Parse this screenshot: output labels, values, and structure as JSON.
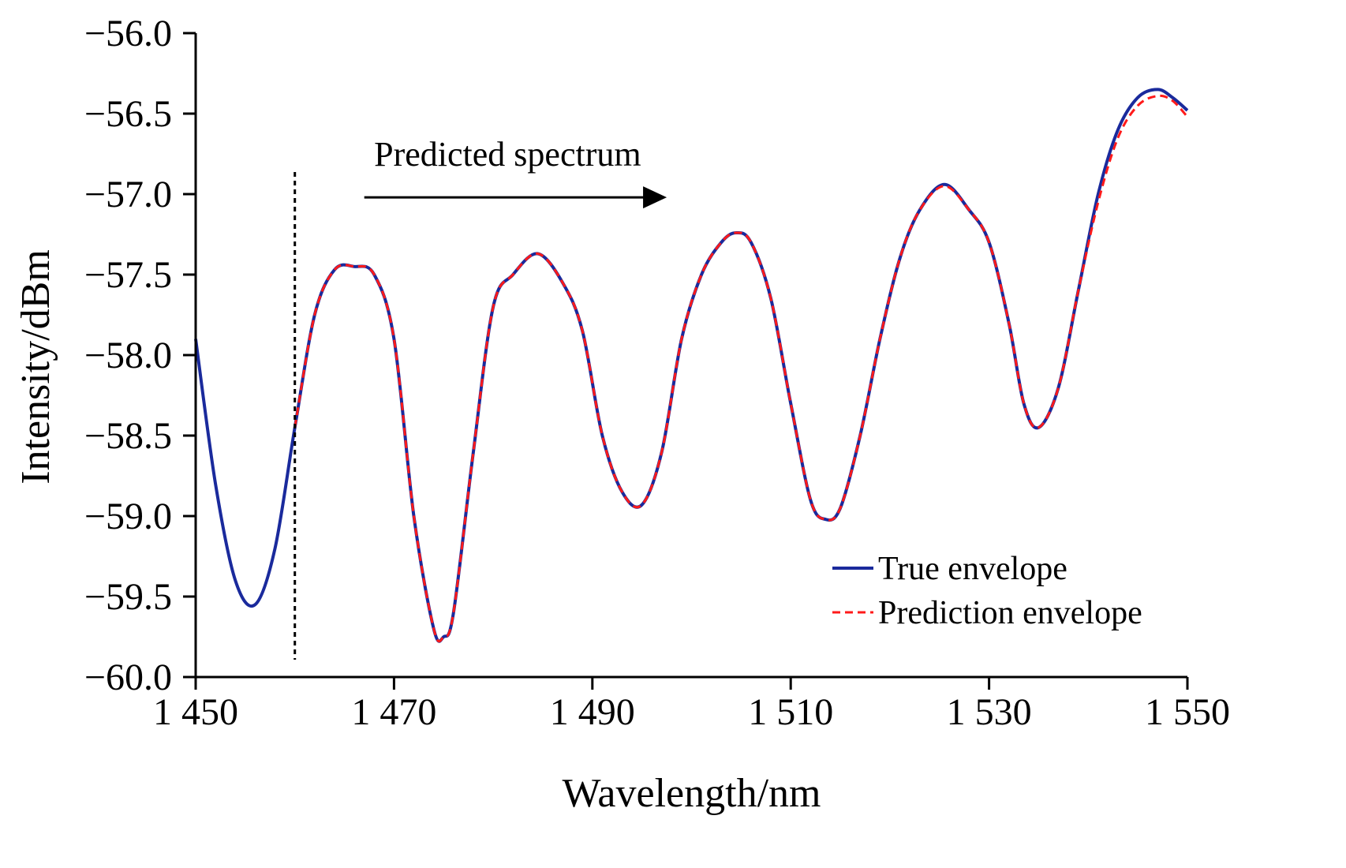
{
  "chart_data": {
    "type": "line",
    "xlabel": "Wavelength/nm",
    "ylabel": "Intensity/dBm",
    "xlim": [
      1450,
      1550
    ],
    "ylim": [
      -60.0,
      -56.0
    ],
    "xticks": [
      1450,
      1470,
      1490,
      1510,
      1530,
      1550
    ],
    "xtick_labels": [
      "1 450",
      "1 470",
      "1 490",
      "1 510",
      "1 530",
      "1 550"
    ],
    "yticks": [
      -56.0,
      -56.5,
      -57.0,
      -57.5,
      -58.0,
      -58.5,
      -59.0,
      -59.5,
      -60.0
    ],
    "ytick_labels": [
      "−56.0",
      "−56.5",
      "−57.0",
      "−57.5",
      "−58.0",
      "−58.5",
      "−59.0",
      "−59.5",
      "−60.0"
    ],
    "grid": false,
    "legend_position": "bottom-right",
    "annotation": {
      "text": "Predicted spectrum",
      "divider_x": 1460,
      "arrow_from_x": 1467,
      "arrow_to_x": 1497.5,
      "arrow_y": -57.02
    },
    "series": [
      {
        "name": "True envelope",
        "color": "#1a2a9c",
        "style": "solid",
        "x": [
          1450,
          1452,
          1454,
          1456,
          1458,
          1460,
          1462,
          1464,
          1466,
          1468,
          1470,
          1472,
          1474,
          1475,
          1476,
          1478,
          1480,
          1482,
          1484.5,
          1487,
          1489,
          1491,
          1493,
          1495,
          1497,
          1499,
          1501,
          1503,
          1504.5,
          1506,
          1508,
          1510,
          1512,
          1513.5,
          1515,
          1517,
          1519,
          1521,
          1523,
          1525.5,
          1528,
          1530,
          1532,
          1533.5,
          1535,
          1537,
          1539,
          1541,
          1543,
          1545,
          1547,
          1548.5,
          1550
        ],
        "values": [
          -57.9,
          -58.8,
          -59.4,
          -59.55,
          -59.2,
          -58.45,
          -57.75,
          -57.47,
          -57.45,
          -57.5,
          -57.9,
          -59.0,
          -59.7,
          -59.75,
          -59.6,
          -58.6,
          -57.7,
          -57.5,
          -57.37,
          -57.55,
          -57.85,
          -58.5,
          -58.85,
          -58.93,
          -58.6,
          -57.9,
          -57.5,
          -57.3,
          -57.24,
          -57.3,
          -57.65,
          -58.3,
          -58.9,
          -59.02,
          -58.95,
          -58.5,
          -57.9,
          -57.4,
          -57.1,
          -56.94,
          -57.1,
          -57.3,
          -57.8,
          -58.3,
          -58.45,
          -58.2,
          -57.6,
          -57.0,
          -56.6,
          -56.4,
          -56.35,
          -56.4,
          -56.48
        ]
      },
      {
        "name": "Prediction envelope",
        "color": "#ff1a1a",
        "style": "dashed",
        "x": [
          1460,
          1462,
          1464,
          1466,
          1468,
          1470,
          1472,
          1474,
          1475,
          1476,
          1478,
          1480,
          1482,
          1484.5,
          1487,
          1489,
          1491,
          1493,
          1495,
          1497,
          1499,
          1501,
          1503,
          1504.5,
          1506,
          1508,
          1510,
          1512,
          1513.5,
          1515,
          1517,
          1519,
          1521,
          1523,
          1525.5,
          1528,
          1530,
          1532,
          1533.5,
          1535,
          1537,
          1539,
          1541,
          1543,
          1545,
          1547,
          1548.5,
          1550
        ],
        "values": [
          -58.45,
          -57.75,
          -57.47,
          -57.45,
          -57.5,
          -57.9,
          -59.0,
          -59.7,
          -59.75,
          -59.6,
          -58.6,
          -57.7,
          -57.5,
          -57.37,
          -57.55,
          -57.85,
          -58.5,
          -58.85,
          -58.93,
          -58.6,
          -57.9,
          -57.5,
          -57.3,
          -57.24,
          -57.3,
          -57.65,
          -58.3,
          -58.9,
          -59.02,
          -58.95,
          -58.5,
          -57.9,
          -57.4,
          -57.1,
          -56.95,
          -57.1,
          -57.3,
          -57.8,
          -58.3,
          -58.45,
          -58.2,
          -57.6,
          -57.05,
          -56.65,
          -56.45,
          -56.39,
          -56.42,
          -56.52
        ]
      }
    ]
  }
}
